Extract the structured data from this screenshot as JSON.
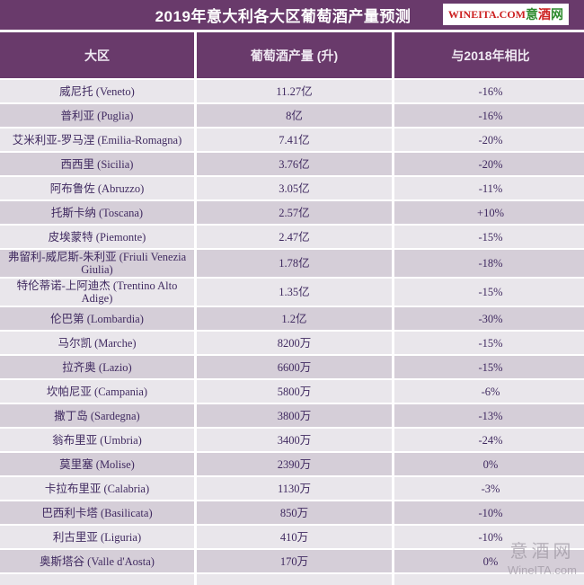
{
  "colors": {
    "purple_header": "#693a6b",
    "row_light": "#e9e6eb",
    "row_dark": "#d5ced8",
    "body_text": "#402a60",
    "logo_red": "#cc2020",
    "logo_green": "#2e8b2e"
  },
  "title": "2019年意大利各大区葡萄酒产量预测",
  "logo": {
    "latin": "WINEITA.COM",
    "cn": [
      "意",
      "酒",
      "网"
    ]
  },
  "table": {
    "headers": [
      "大区",
      "葡萄酒产量 (升)",
      "与2018年相比"
    ],
    "rows": [
      {
        "region": "威尼托 (Veneto)",
        "production": "11.27亿",
        "change": "-16%"
      },
      {
        "region": "普利亚 (Puglia)",
        "production": "8亿",
        "change": "-16%"
      },
      {
        "region": "艾米利亚-罗马涅 (Emilia-Romagna)",
        "production": "7.41亿",
        "change": "-20%"
      },
      {
        "region": "西西里 (Sicilia)",
        "production": "3.76亿",
        "change": "-20%"
      },
      {
        "region": "阿布鲁佐 (Abruzzo)",
        "production": "3.05亿",
        "change": "-11%"
      },
      {
        "region": "托斯卡纳 (Toscana)",
        "production": "2.57亿",
        "change": "+10%"
      },
      {
        "region": "皮埃蒙特 (Piemonte)",
        "production": "2.47亿",
        "change": "-15%"
      },
      {
        "region": "弗留利-威尼斯-朱利亚 (Friuli Venezia Giulia)",
        "production": "1.78亿",
        "change": "-18%"
      },
      {
        "region": "特伦蒂诺-上阿迪杰 (Trentino Alto Adige)",
        "production": "1.35亿",
        "change": "-15%"
      },
      {
        "region": "伦巴第 (Lombardia)",
        "production": "1.2亿",
        "change": "-30%"
      },
      {
        "region": "马尔凯 (Marche)",
        "production": "8200万",
        "change": "-15%"
      },
      {
        "region": "拉齐奥 (Lazio)",
        "production": "6600万",
        "change": "-15%"
      },
      {
        "region": "坎帕尼亚 (Campania)",
        "production": "5800万",
        "change": "-6%"
      },
      {
        "region": "撒丁岛 (Sardegna)",
        "production": "3800万",
        "change": "-13%"
      },
      {
        "region": "翁布里亚 (Umbria)",
        "production": "3400万",
        "change": "-24%"
      },
      {
        "region": "莫里塞 (Molise)",
        "production": "2390万",
        "change": "0%"
      },
      {
        "region": "卡拉布里亚 (Calabria)",
        "production": "1130万",
        "change": "-3%"
      },
      {
        "region": "巴西利卡塔 (Basilicata)",
        "production": "850万",
        "change": "-10%"
      },
      {
        "region": "利古里亚 (Liguria)",
        "production": "410万",
        "change": "-10%"
      },
      {
        "region": "奥斯塔谷 (Valle d'Aosta)",
        "production": "170万",
        "change": "0%"
      }
    ]
  },
  "watermark": {
    "line1": "意酒网",
    "line2": "WineITA.com"
  }
}
